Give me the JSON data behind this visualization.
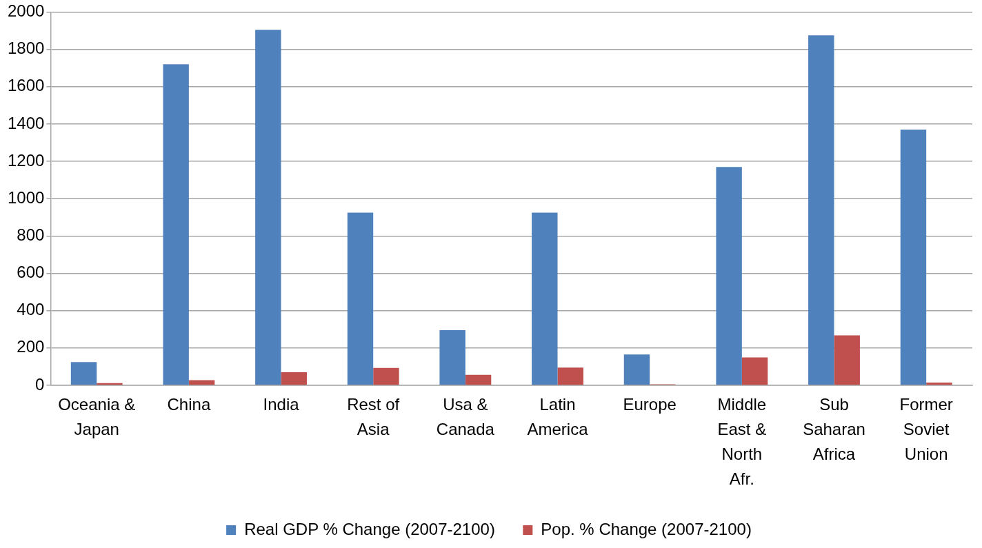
{
  "chart_data": {
    "type": "bar",
    "categories": [
      "Oceania & Japan",
      "China",
      "India",
      "Rest of Asia",
      "Usa & Canada",
      "Latin America",
      "Europe",
      "Middle East & North Afr.",
      "Sub Saharan Africa",
      "Former Soviet Union"
    ],
    "series": [
      {
        "name": "Real GDP % Change (2007-2100)",
        "color": "#4f81bd",
        "values": [
          125,
          1720,
          1905,
          925,
          295,
          925,
          165,
          1170,
          1875,
          1370
        ]
      },
      {
        "name": "Pop. % Change (2007-2100)",
        "color": "#c0504d",
        "values": [
          12,
          28,
          70,
          93,
          56,
          95,
          6,
          150,
          268,
          15
        ]
      }
    ],
    "ylim": [
      0,
      2000
    ],
    "yticks": [
      0,
      200,
      400,
      600,
      800,
      1000,
      1200,
      1400,
      1600,
      1800,
      2000
    ],
    "grid": "y",
    "legend": "bottom"
  }
}
